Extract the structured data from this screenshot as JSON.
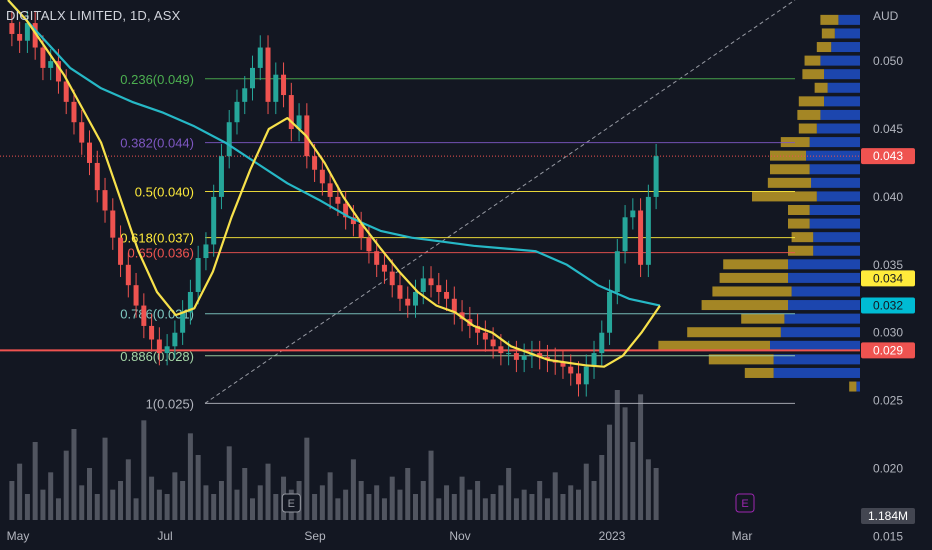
{
  "header": {
    "symbol": "DIGITALX LIMITED, 1D, ASX",
    "currency": "AUD"
  },
  "colors": {
    "background": "#131722",
    "up_candle": "#26a69a",
    "down_candle": "#ef5350",
    "ma_fast": "#f7e14b",
    "ma_slow": "#26b8c6",
    "volume_bar": "#5d606b",
    "profile_up": "#1f4fc7",
    "profile_down": "#c9a227",
    "fib_line": "#c9c9c9"
  },
  "chart_data": {
    "type": "candlestick",
    "title": "DIGITALX LIMITED, 1D, ASX",
    "price_unit": "AUD",
    "ylim": [
      0.014,
      0.0545
    ],
    "x_tick_labels": [
      "May",
      "Jul",
      "Sep",
      "Nov",
      "2023",
      "Mar"
    ],
    "y_tick_labels": [
      "0.050",
      "0.045",
      "0.040",
      "0.035",
      "0.030",
      "0.025",
      "0.020",
      "0.015"
    ],
    "price_badges": [
      {
        "label": "0.043",
        "value": 0.043,
        "color": "#ef5350",
        "text_color": "#ffffff"
      },
      {
        "label": "0.034",
        "value": 0.034,
        "color": "#ffeb3b",
        "text_color": "#131722"
      },
      {
        "label": "0.032",
        "value": 0.032,
        "color": "#00bcd4",
        "text_color": "#131722"
      },
      {
        "label": "0.029",
        "value": 0.0287,
        "color": "#ef5350",
        "text_color": "#ffffff"
      },
      {
        "label": "1.184M",
        "value": 0.0165,
        "color": "#434651",
        "text_color": "#ffffff"
      }
    ],
    "fib_levels": [
      {
        "label": "0.236(0.049)",
        "value": 0.0487,
        "color": "#4caf50"
      },
      {
        "label": "0.382(0.044)",
        "value": 0.044,
        "color": "#7e57c2"
      },
      {
        "label": "0.5(0.040)",
        "value": 0.0404,
        "color": "#ffeb3b"
      },
      {
        "label": "0.618(0.037)",
        "value": 0.037,
        "color": "#ffeb3b"
      },
      {
        "label": "0.65(0.036)",
        "value": 0.0359,
        "color": "#ef5350"
      },
      {
        "label": "0.786(0.031)",
        "value": 0.0314,
        "color": "#80cbc4"
      },
      {
        "label": "0.886(0.028)",
        "value": 0.0283,
        "color": "#a5d6a7"
      },
      {
        "label": "1(0.025)",
        "value": 0.0248,
        "color": "#b2b5be"
      }
    ],
    "close_series": {
      "name": "",
      "values": [
        0.052,
        0.0515,
        0.0528,
        0.051,
        0.0495,
        0.05,
        0.0485,
        0.047,
        0.0455,
        0.044,
        0.0425,
        0.0405,
        0.039,
        0.037,
        0.035,
        0.0335,
        0.032,
        0.0305,
        0.0295,
        0.0285,
        0.029,
        0.03,
        0.0315,
        0.033,
        0.0355,
        0.0365,
        0.04,
        0.043,
        0.0455,
        0.047,
        0.048,
        0.0495,
        0.051,
        0.047,
        0.049,
        0.0475,
        0.045,
        0.046,
        0.043,
        0.042,
        0.041,
        0.04,
        0.0395,
        0.0385,
        0.038,
        0.037,
        0.036,
        0.035,
        0.0345,
        0.0335,
        0.0325,
        0.032,
        0.033,
        0.034,
        0.0335,
        0.033,
        0.0325,
        0.0315,
        0.031,
        0.0305,
        0.03,
        0.0295,
        0.029,
        0.0285,
        0.0285,
        0.028,
        0.0283,
        0.0285,
        0.0282,
        0.028,
        0.0278,
        0.0275,
        0.027,
        0.0262,
        0.0275,
        0.0285,
        0.03,
        0.033,
        0.036,
        0.0385,
        0.039,
        0.035,
        0.04,
        0.043
      ]
    },
    "ma_fast": {
      "name": "",
      "values": [
        0.0545,
        0.053,
        0.051,
        0.049,
        0.0465,
        0.044,
        0.04,
        0.036,
        0.033,
        0.0313,
        0.0318,
        0.0345,
        0.0385,
        0.042,
        0.045,
        0.0458,
        0.0445,
        0.0425,
        0.04,
        0.038,
        0.0362,
        0.0345,
        0.033,
        0.032,
        0.0315,
        0.0305,
        0.03,
        0.029,
        0.0285,
        0.028,
        0.0278,
        0.0276,
        0.0275,
        0.0283,
        0.03,
        0.032
      ]
    },
    "ma_slow": {
      "name": "",
      "values": [
        0.0545,
        0.052,
        0.0495,
        0.048,
        0.047,
        0.0462,
        0.0452,
        0.044,
        0.0425,
        0.041,
        0.0398,
        0.0385,
        0.0375,
        0.037,
        0.0367,
        0.0364,
        0.0362,
        0.036,
        0.035,
        0.0335,
        0.0325,
        0.032
      ]
    },
    "volume_unit": "M",
    "volume_last_label": "1.184M",
    "volume": [
      0.9,
      1.3,
      0.6,
      1.8,
      0.7,
      1.1,
      0.5,
      1.6,
      2.1,
      0.8,
      1.2,
      0.6,
      1.9,
      0.7,
      0.9,
      1.4,
      0.5,
      2.3,
      1.0,
      0.7,
      0.6,
      1.1,
      0.9,
      2.0,
      1.5,
      0.8,
      0.6,
      0.9,
      1.7,
      0.7,
      1.2,
      0.5,
      0.8,
      1.3,
      0.6,
      1.0,
      0.7,
      0.9,
      1.9,
      0.6,
      0.8,
      1.1,
      0.5,
      0.7,
      1.4,
      0.9,
      0.6,
      0.8,
      0.5,
      1.0,
      0.7,
      1.2,
      0.6,
      0.9,
      1.6,
      0.5,
      0.8,
      0.6,
      1.0,
      0.7,
      0.9,
      0.5,
      0.6,
      0.8,
      1.2,
      0.5,
      0.7,
      0.6,
      0.9,
      0.5,
      1.1,
      0.6,
      0.8,
      0.7,
      1.3,
      0.9,
      1.5,
      2.2,
      3.0,
      2.6,
      1.8,
      2.9,
      1.4,
      1.2
    ],
    "volume_profile": [
      {
        "price": 0.053,
        "up": 0.3,
        "down": 0.25
      },
      {
        "price": 0.052,
        "up": 0.35,
        "down": 0.18
      },
      {
        "price": 0.051,
        "up": 0.4,
        "down": 0.2
      },
      {
        "price": 0.05,
        "up": 0.55,
        "down": 0.22
      },
      {
        "price": 0.049,
        "up": 0.5,
        "down": 0.3
      },
      {
        "price": 0.048,
        "up": 0.45,
        "down": 0.18
      },
      {
        "price": 0.047,
        "up": 0.5,
        "down": 0.35
      },
      {
        "price": 0.046,
        "up": 0.55,
        "down": 0.32
      },
      {
        "price": 0.045,
        "up": 0.6,
        "down": 0.25
      },
      {
        "price": 0.044,
        "up": 0.7,
        "down": 0.4
      },
      {
        "price": 0.043,
        "up": 0.75,
        "down": 0.5
      },
      {
        "price": 0.042,
        "up": 0.7,
        "down": 0.55
      },
      {
        "price": 0.041,
        "up": 0.68,
        "down": 0.6
      },
      {
        "price": 0.04,
        "up": 0.6,
        "down": 0.9
      },
      {
        "price": 0.039,
        "up": 0.7,
        "down": 0.3
      },
      {
        "price": 0.038,
        "up": 0.7,
        "down": 0.3
      },
      {
        "price": 0.037,
        "up": 0.65,
        "down": 0.3
      },
      {
        "price": 0.036,
        "up": 0.65,
        "down": 0.35
      },
      {
        "price": 0.035,
        "up": 1.0,
        "down": 0.9
      },
      {
        "price": 0.034,
        "up": 1.0,
        "down": 0.95
      },
      {
        "price": 0.033,
        "up": 0.95,
        "down": 1.1
      },
      {
        "price": 0.032,
        "up": 1.0,
        "down": 1.2
      },
      {
        "price": 0.031,
        "up": 1.05,
        "down": 0.6
      },
      {
        "price": 0.03,
        "up": 1.1,
        "down": 1.3
      },
      {
        "price": 0.029,
        "up": 1.25,
        "down": 1.55
      },
      {
        "price": 0.028,
        "up": 1.2,
        "down": 0.9
      },
      {
        "price": 0.027,
        "up": 1.2,
        "down": 0.4
      },
      {
        "price": 0.026,
        "up": 0.05,
        "down": 0.1
      }
    ],
    "earnings_markers": [
      {
        "label": "E",
        "index": 36
      },
      {
        "label": "E",
        "index": 999
      }
    ]
  }
}
